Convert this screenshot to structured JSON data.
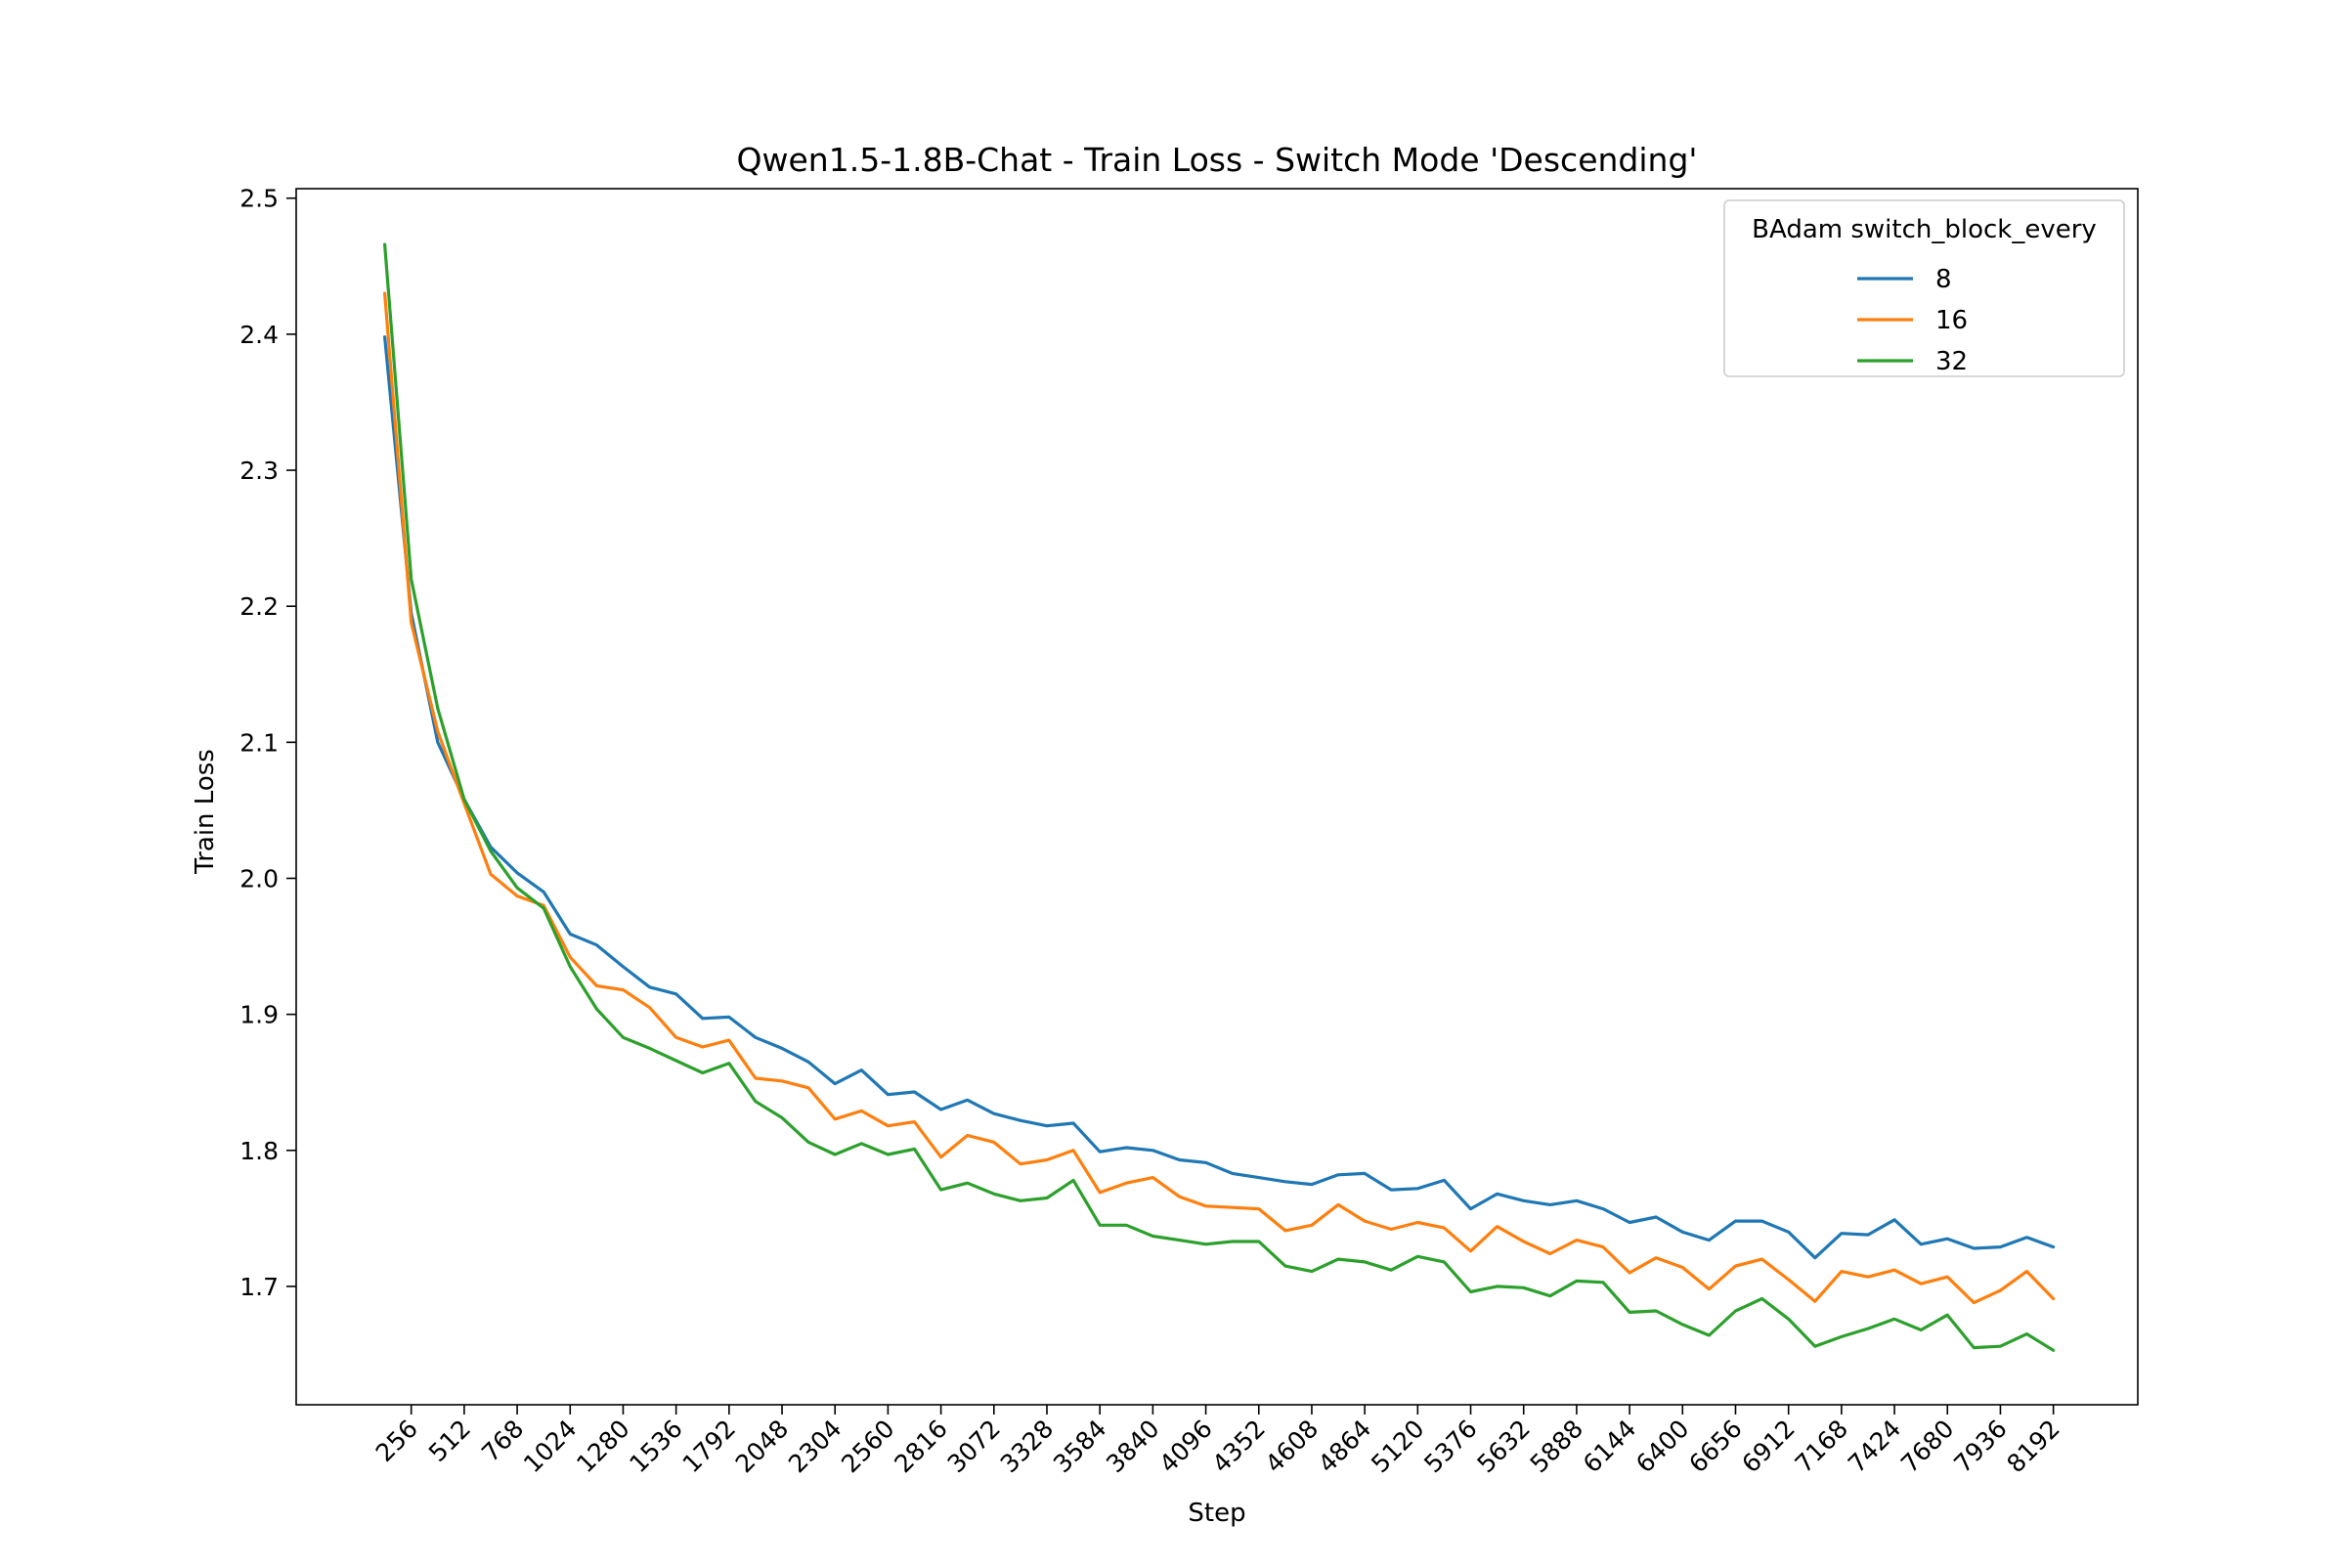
{
  "chart_data": {
    "type": "line",
    "title": "Qwen1.5-1.8B-Chat - Train Loss - Switch Mode 'Descending'",
    "xlabel": "Step",
    "ylabel": "Train Loss",
    "xlim": [
      -300,
      8600
    ],
    "ylim": [
      1.613,
      2.507
    ],
    "grid": false,
    "legend": {
      "title": "BAdam switch_block_every",
      "placement": "top-right"
    },
    "x_ticks": [
      256,
      512,
      768,
      1024,
      1280,
      1536,
      1792,
      2048,
      2304,
      2560,
      2816,
      3072,
      3328,
      3584,
      3840,
      4096,
      4352,
      4608,
      4864,
      5120,
      5376,
      5632,
      5888,
      6144,
      6400,
      6656,
      6912,
      7168,
      7424,
      7680,
      7936,
      8192
    ],
    "y_ticks": [
      1.7,
      1.8,
      1.9,
      2.0,
      2.1,
      2.2,
      2.3,
      2.4,
      2.5
    ],
    "x": [
      128,
      256,
      384,
      512,
      640,
      768,
      896,
      1024,
      1152,
      1280,
      1408,
      1536,
      1664,
      1792,
      1920,
      2048,
      2176,
      2304,
      2432,
      2560,
      2688,
      2816,
      2944,
      3072,
      3200,
      3328,
      3456,
      3584,
      3712,
      3840,
      3968,
      4096,
      4224,
      4352,
      4480,
      4608,
      4736,
      4864,
      4992,
      5120,
      5248,
      5376,
      5504,
      5632,
      5760,
      5888,
      6016,
      6144,
      6272,
      6400,
      6528,
      6656,
      6784,
      6912,
      7040,
      7168,
      7296,
      7424,
      7552,
      7680,
      7808,
      7936,
      8064,
      8192
    ],
    "series": [
      {
        "name": "8",
        "color": "#1f77b4",
        "values": [
          2.398,
          2.195,
          2.1,
          2.058,
          2.023,
          2.004,
          1.99,
          1.959,
          1.951,
          1.935,
          1.92,
          1.915,
          1.897,
          1.898,
          1.883,
          1.875,
          1.865,
          1.849,
          1.859,
          1.841,
          1.843,
          1.83,
          1.837,
          1.827,
          1.822,
          1.818,
          1.82,
          1.799,
          1.802,
          1.8,
          1.793,
          1.791,
          1.783,
          1.78,
          1.777,
          1.775,
          1.782,
          1.783,
          1.771,
          1.772,
          1.778,
          1.757,
          1.768,
          1.763,
          1.76,
          1.763,
          1.757,
          1.747,
          1.751,
          1.74,
          1.734,
          1.748,
          1.748,
          1.74,
          1.721,
          1.739,
          1.738,
          1.749,
          1.731,
          1.735,
          1.728,
          1.729,
          1.736,
          1.729
        ]
      },
      {
        "name": "16",
        "color": "#ff7f0e",
        "values": [
          2.43,
          2.188,
          2.108,
          2.055,
          2.003,
          1.987,
          1.98,
          1.942,
          1.921,
          1.918,
          1.905,
          1.883,
          1.876,
          1.881,
          1.853,
          1.851,
          1.846,
          1.823,
          1.829,
          1.818,
          1.821,
          1.795,
          1.811,
          1.806,
          1.79,
          1.793,
          1.8,
          1.769,
          1.776,
          1.78,
          1.766,
          1.759,
          1.758,
          1.757,
          1.741,
          1.745,
          1.76,
          1.748,
          1.742,
          1.747,
          1.743,
          1.726,
          1.744,
          1.733,
          1.724,
          1.734,
          1.729,
          1.71,
          1.721,
          1.714,
          1.698,
          1.715,
          1.72,
          1.705,
          1.689,
          1.711,
          1.707,
          1.712,
          1.702,
          1.707,
          1.688,
          1.697,
          1.711,
          1.691
        ]
      },
      {
        "name": "32",
        "color": "#2ca02c",
        "values": [
          2.466,
          2.22,
          2.125,
          2.058,
          2.02,
          1.993,
          1.978,
          1.935,
          1.904,
          1.883,
          1.875,
          1.866,
          1.857,
          1.864,
          1.836,
          1.824,
          1.806,
          1.797,
          1.805,
          1.797,
          1.801,
          1.771,
          1.776,
          1.768,
          1.763,
          1.765,
          1.778,
          1.745,
          1.745,
          1.737,
          1.734,
          1.731,
          1.733,
          1.733,
          1.715,
          1.711,
          1.72,
          1.718,
          1.712,
          1.722,
          1.718,
          1.696,
          1.7,
          1.699,
          1.693,
          1.704,
          1.703,
          1.681,
          1.682,
          1.672,
          1.664,
          1.682,
          1.691,
          1.676,
          1.656,
          1.663,
          1.669,
          1.676,
          1.668,
          1.679,
          1.655,
          1.656,
          1.665,
          1.653
        ]
      }
    ]
  }
}
